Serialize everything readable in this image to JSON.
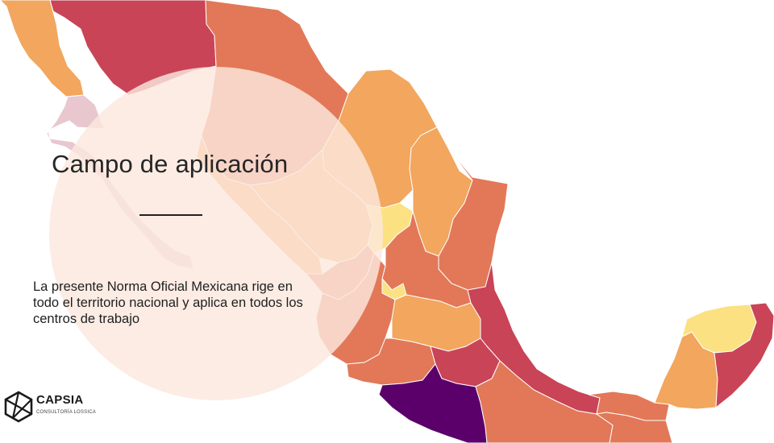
{
  "slide": {
    "title": "Campo de aplicación",
    "body": "La presente Norma Oficial Mexicana rige en todo el territorio nacional y aplica en todos los centros de trabajo"
  },
  "logo": {
    "name": "CAPSIA",
    "tagline": "CONSULTORÍA LOSSICA"
  },
  "map": {
    "colors": {
      "dark_red": "#c94457",
      "red": "#d9524f",
      "orange": "#e27858",
      "light_orange": "#f2a65e",
      "yellow": "#fbe182",
      "purple": "#5b006b",
      "overlay": "#fbe8de"
    }
  }
}
